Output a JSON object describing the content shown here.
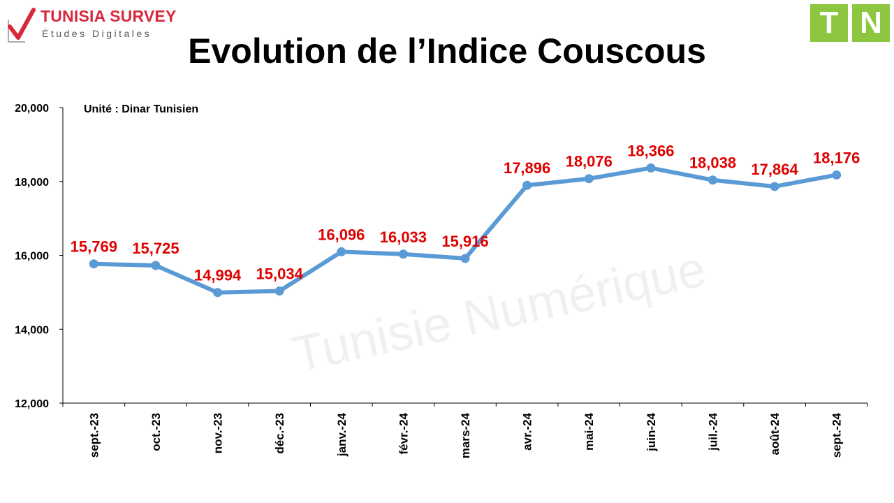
{
  "header": {
    "brand_name": "TUNISIA SURVEY",
    "brand_sub": "Études Digitales",
    "right_logo_letters": [
      "T",
      "N"
    ],
    "title": "Evolution de l’Indice Couscous"
  },
  "colors": {
    "line": "#5b9bd5",
    "data_label": "#e00000",
    "brand": "#d8283c",
    "tn_green": "#8dc63f",
    "axis": "#000000"
  },
  "watermark": "Tunisie Numérique",
  "chart_data": {
    "type": "line",
    "unit_note": "Unité : Dinar Tunisien",
    "categories": [
      "sept.-23",
      "oct.-23",
      "nov.-23",
      "déc.-23",
      "janv.-24",
      "févr.-24",
      "mars-24",
      "avr.-24",
      "mai-24",
      "juin-24",
      "juil.-24",
      "août-24",
      "sept.-24"
    ],
    "values": [
      15.769,
      15.725,
      14.994,
      15.034,
      16.096,
      16.033,
      15.916,
      17.896,
      18.076,
      18.366,
      18.038,
      17.864,
      18.176
    ],
    "data_labels": [
      "15,769",
      "15,725",
      "14,994",
      "15,034",
      "16,096",
      "16,033",
      "15,916",
      "17,896",
      "18,076",
      "18,366",
      "18,038",
      "17,864",
      "18,176"
    ],
    "ylim": [
      12,
      20
    ],
    "yticks": [
      12,
      14,
      16,
      18,
      20
    ],
    "ytick_labels": [
      "12,000",
      "14,000",
      "16,000",
      "18,000",
      "20,000"
    ],
    "grid": false,
    "legend": "none"
  }
}
